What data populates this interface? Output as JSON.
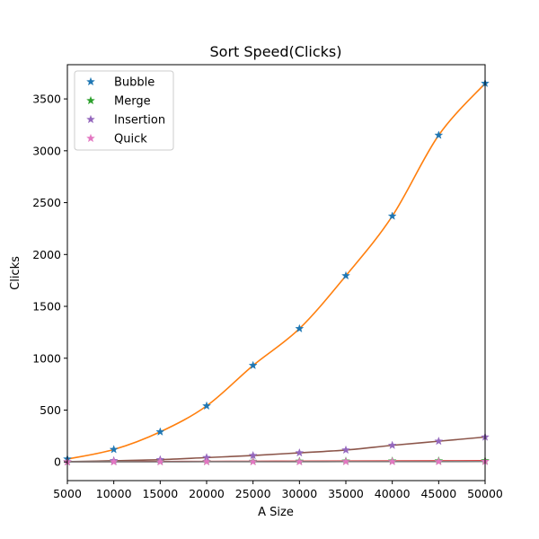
{
  "chart_data": {
    "type": "line",
    "title": "Sort Speed(Clicks)",
    "xlabel": "A Size",
    "ylabel": "Clicks",
    "xlim": [
      5000,
      50000
    ],
    "ylim": [
      -180,
      3830
    ],
    "xticks": [
      5000,
      10000,
      15000,
      20000,
      25000,
      30000,
      35000,
      40000,
      45000,
      50000
    ],
    "yticks": [
      0,
      500,
      1000,
      1500,
      2000,
      2500,
      3000,
      3500
    ],
    "grid": false,
    "legend_position": "top-left",
    "x": [
      5000,
      10000,
      15000,
      20000,
      25000,
      30000,
      35000,
      40000,
      45000,
      50000
    ],
    "series": [
      {
        "name": "Bubble",
        "marker": "star",
        "color": "#1f77b4",
        "values": [
          28,
          120,
          290,
          540,
          930,
          1285,
          1795,
          2370,
          3150,
          3650
        ],
        "fit_color": "#ff7f0e"
      },
      {
        "name": "Merge",
        "marker": "star",
        "color": "#2ca02c",
        "values": [
          1,
          3,
          4,
          5,
          6,
          7,
          8,
          9,
          10,
          11
        ],
        "fit_color": "#d62728"
      },
      {
        "name": "Insertion",
        "marker": "star",
        "color": "#9467bd",
        "values": [
          2,
          12,
          22,
          42,
          62,
          88,
          115,
          160,
          200,
          240
        ],
        "fit_color": "#8c564b"
      },
      {
        "name": "Quick",
        "marker": "star",
        "color": "#e377c2",
        "values": [
          0,
          1,
          1,
          2,
          2,
          2,
          3,
          3,
          3,
          4
        ],
        "fit_color": "#7f7f7f"
      }
    ]
  }
}
